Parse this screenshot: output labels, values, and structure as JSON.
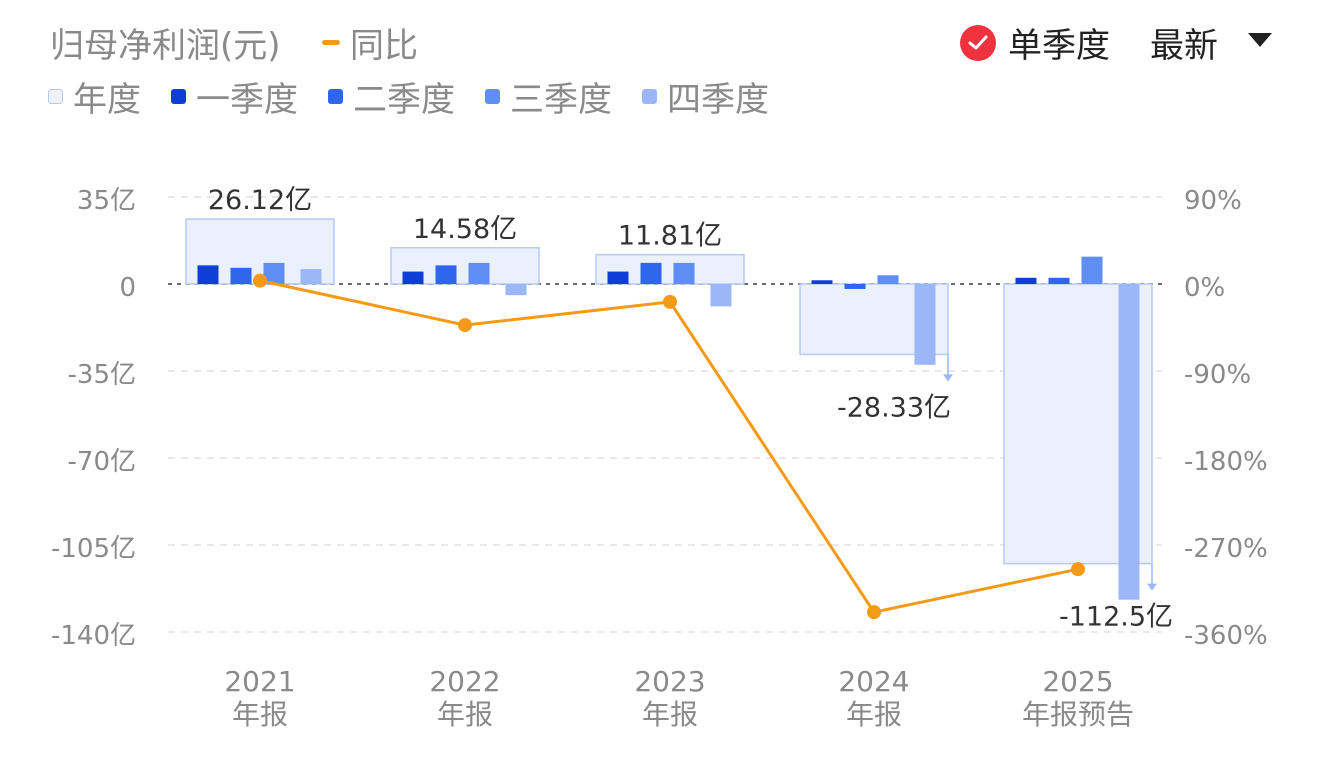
{
  "header": {
    "title": "归母净利润(元)",
    "yoy_label": "同比",
    "single_quarter": "单季度",
    "latest": "最新"
  },
  "legend": [
    {
      "label": "年度",
      "color": "#e8eefc"
    },
    {
      "label": "一季度",
      "color": "#0d3fd6"
    },
    {
      "label": "二季度",
      "color": "#2f66ee"
    },
    {
      "label": "三季度",
      "color": "#5f8ef5"
    },
    {
      "label": "四季度",
      "color": "#9bb7f8"
    }
  ],
  "chart_data": {
    "type": "bar",
    "categories": [
      [
        "2021",
        "年报"
      ],
      [
        "2022",
        "年报"
      ],
      [
        "2023",
        "年报"
      ],
      [
        "2024",
        "年报"
      ],
      [
        "2025",
        "年报预告"
      ]
    ],
    "annual": {
      "values": [
        26.12,
        14.58,
        11.81,
        -28.33,
        -112.5
      ],
      "labels": [
        "26.12亿",
        "14.58亿",
        "11.81亿",
        "-28.33亿",
        "-112.5亿"
      ]
    },
    "quarters": [
      {
        "name": "一季度",
        "values": [
          7.5,
          5.0,
          5.0,
          1.5,
          2.5
        ]
      },
      {
        "name": "二季度",
        "values": [
          6.5,
          7.5,
          8.5,
          -2.0,
          2.5
        ]
      },
      {
        "name": "三季度",
        "values": [
          8.5,
          8.5,
          8.5,
          3.5,
          11.0
        ]
      },
      {
        "name": "四季度",
        "values": [
          6.0,
          -4.5,
          -9.0,
          -32.5,
          -127.0
        ]
      }
    ],
    "yoy": {
      "name": "同比",
      "values": [
        3.5,
        -42.5,
        -18.5,
        -339.5,
        -295.0
      ]
    },
    "y_left": {
      "ticks": [
        35,
        0,
        -35,
        -70,
        -105,
        -140
      ],
      "tick_labels": [
        "35亿",
        "0",
        "-35亿",
        "-70亿",
        "-105亿",
        "-140亿"
      ],
      "ylim": [
        -140,
        35
      ]
    },
    "y_right": {
      "ticks": [
        90,
        0,
        -90,
        -180,
        -270,
        -360
      ],
      "tick_labels": [
        "90%",
        "0%",
        "-90%",
        "-180%",
        "-270%",
        "-360%"
      ],
      "ylim": [
        -360,
        90
      ]
    },
    "grid": true
  }
}
